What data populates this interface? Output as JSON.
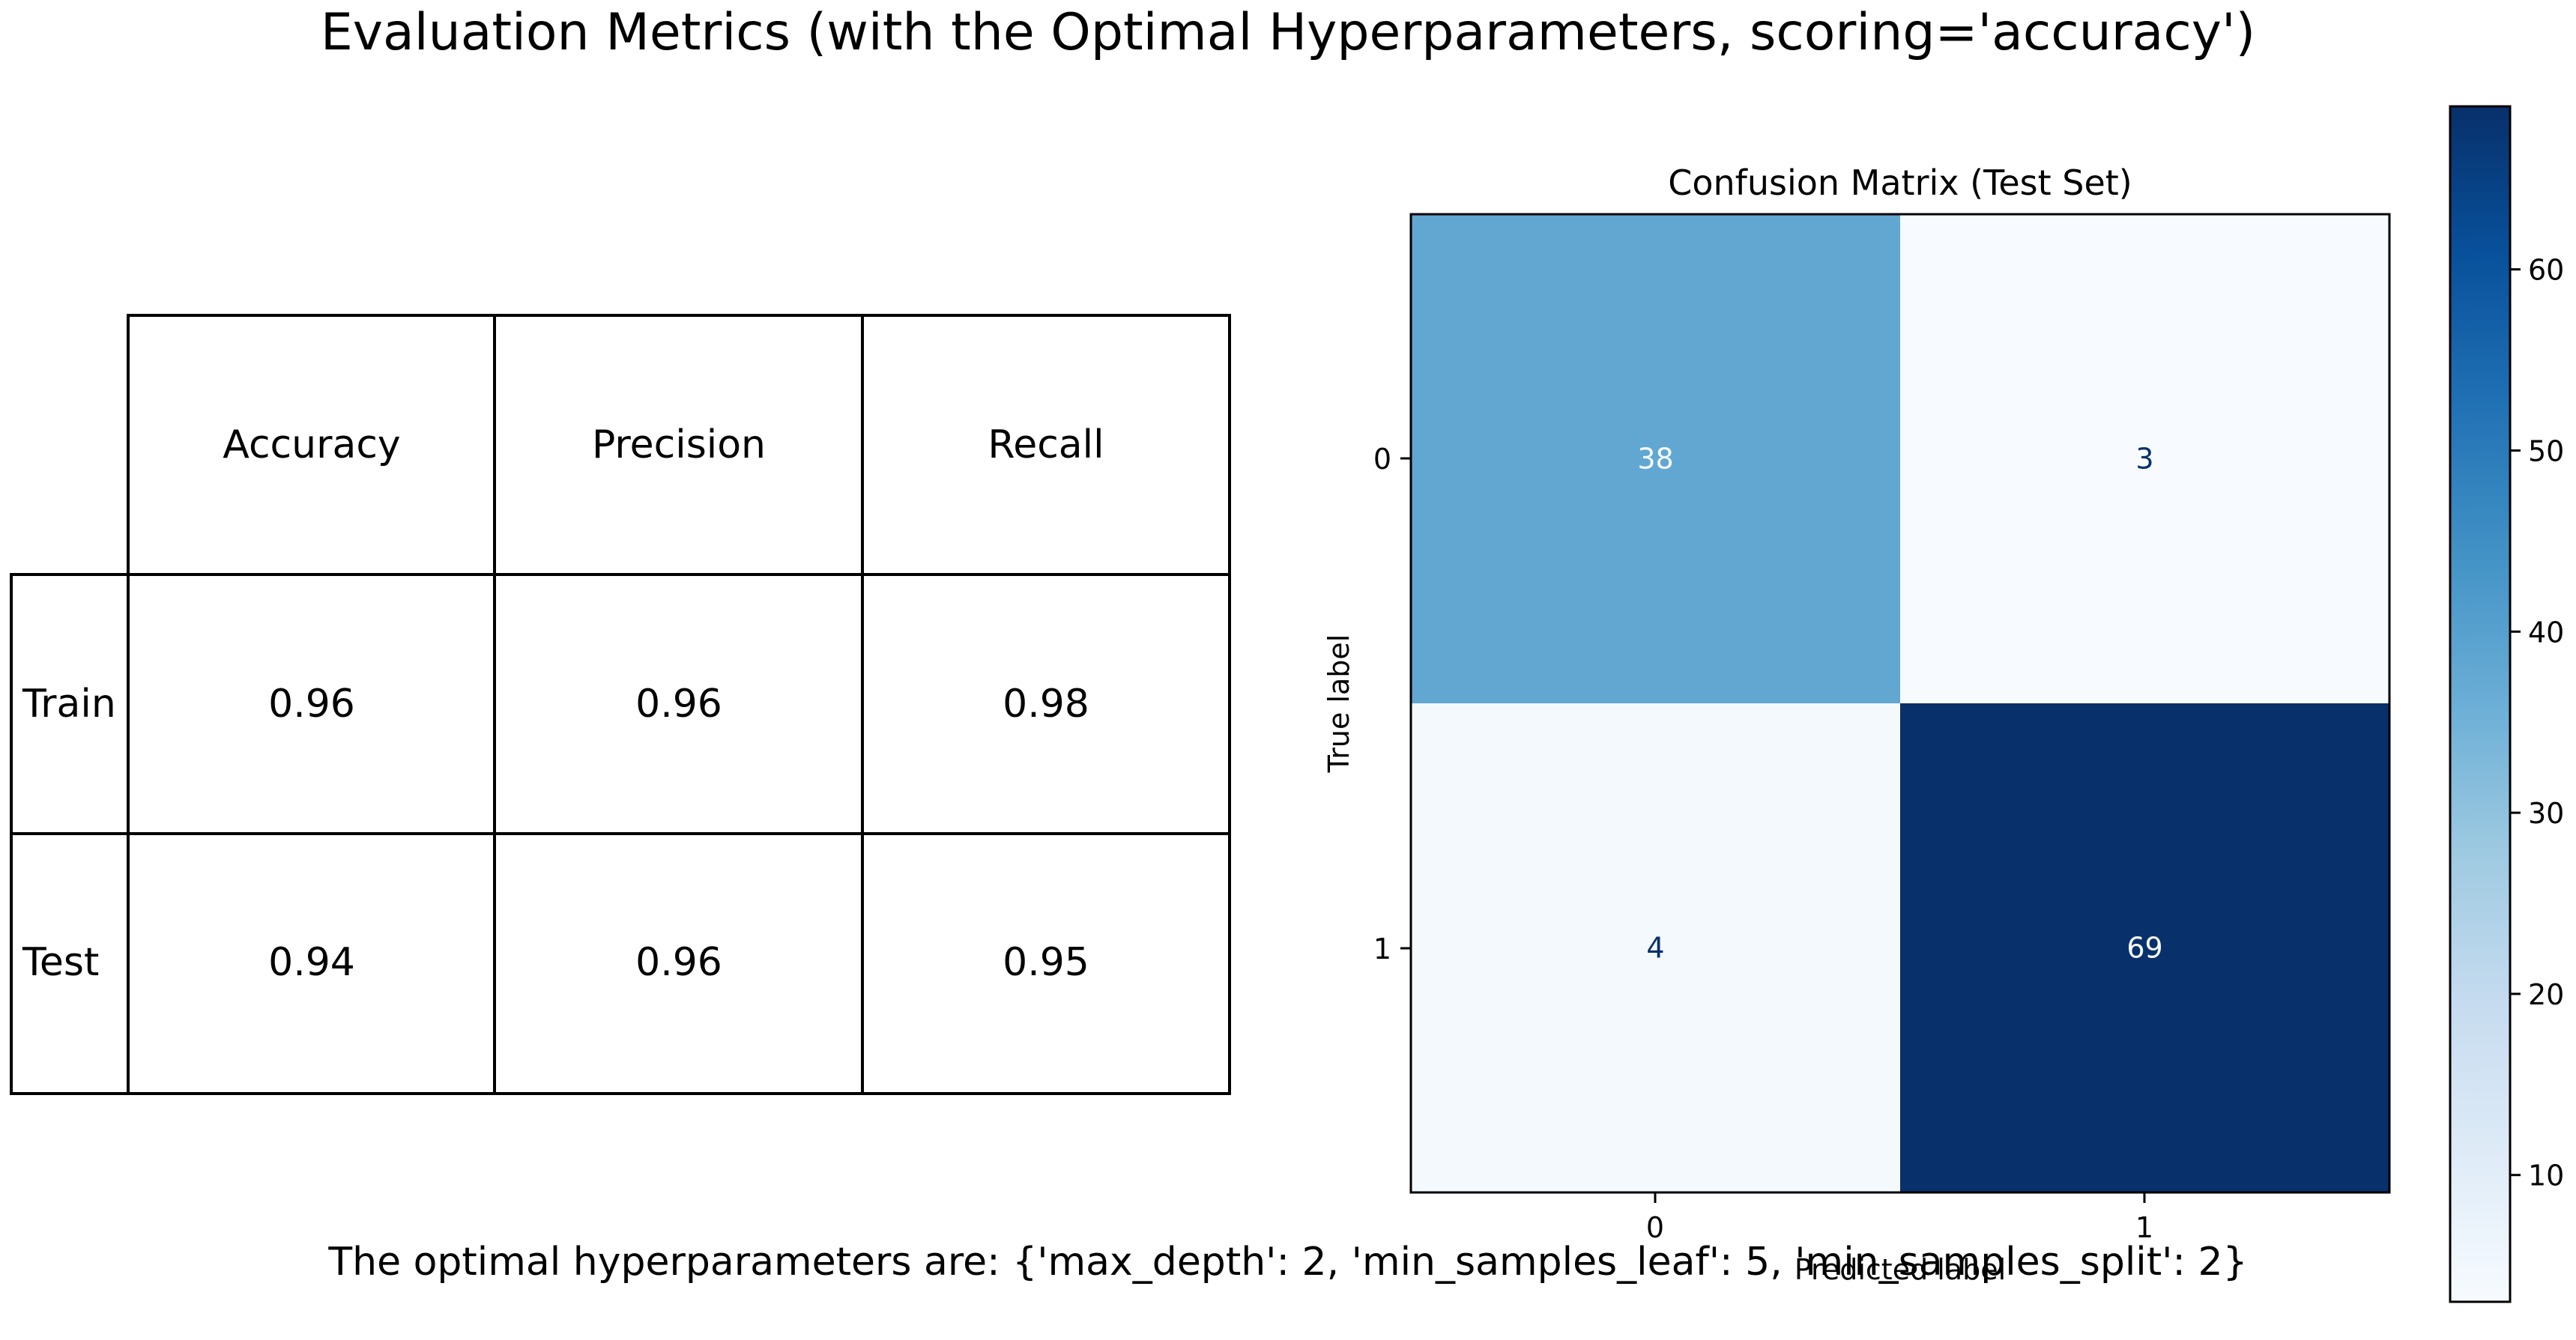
{
  "title": "Evaluation Metrics (with the Optimal Hyperparameters, scoring='accuracy')",
  "footer": "The optimal hyperparameters are: {'max_depth': 2, 'min_samples_leaf': 5, 'min_samples_split': 2}",
  "colors": {
    "cmap_low": "#f7fbff",
    "cmap_mid": "#5fa5d1",
    "cmap_high": "#08306b",
    "light_text": "#f7fbff",
    "dark_text": "#08306b"
  },
  "chart_data": [
    {
      "type": "table",
      "columns": [
        "Accuracy",
        "Precision",
        "Recall"
      ],
      "rows": [
        {
          "label": "Train",
          "values": [
            "0.96",
            "0.96",
            "0.98"
          ]
        },
        {
          "label": "Test",
          "values": [
            "0.94",
            "0.96",
            "0.95"
          ]
        }
      ]
    },
    {
      "type": "heatmap",
      "title": "Confusion Matrix (Test Set)",
      "xlabel": "Predicted label",
      "ylabel": "True label",
      "x_categories": [
        "0",
        "1"
      ],
      "y_categories": [
        "0",
        "1"
      ],
      "matrix": [
        [
          38,
          3
        ],
        [
          4,
          69
        ]
      ],
      "colorbar": {
        "min": 3,
        "max": 69,
        "ticks": [
          "10",
          "20",
          "30",
          "40",
          "50",
          "60"
        ]
      }
    }
  ]
}
